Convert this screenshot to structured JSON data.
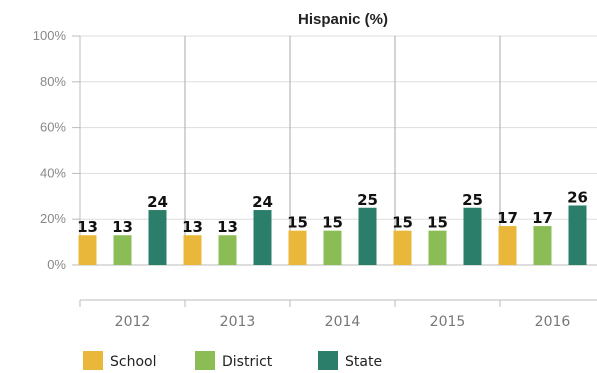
{
  "chart_data": {
    "type": "bar",
    "title": "Hispanic (%)",
    "categories": [
      "2012",
      "2013",
      "2014",
      "2015",
      "2016"
    ],
    "series": [
      {
        "name": "School",
        "values": [
          13,
          13,
          15,
          15,
          17
        ]
      },
      {
        "name": "District",
        "values": [
          13,
          13,
          15,
          15,
          17
        ]
      },
      {
        "name": "State",
        "values": [
          24,
          24,
          25,
          25,
          26
        ]
      }
    ],
    "ylim": [
      0,
      100
    ],
    "yticks": [
      "0%",
      "20%",
      "40%",
      "60%",
      "80%",
      "100%"
    ],
    "grid": true,
    "legend": "bottom-left",
    "colors": [
      "#e9b83a",
      "#8cbc55",
      "#2b7f6a"
    ]
  }
}
